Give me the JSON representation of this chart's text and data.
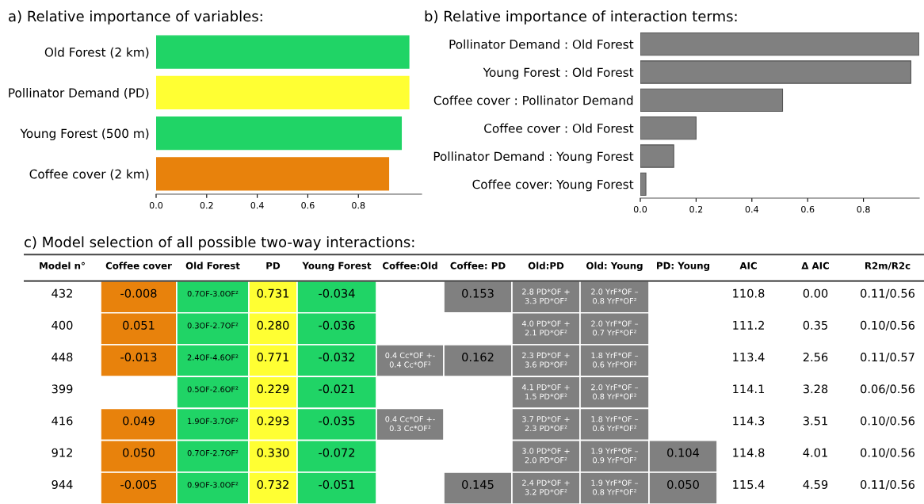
{
  "chart_data": [
    {
      "type": "bar",
      "orientation": "horizontal",
      "title": "a) Relative importance of variables:",
      "categories": [
        "Old Forest (2 km)",
        "Pollinator Demand (PD)",
        "Young Forest (500 m)",
        "Coffee cover (2 km)"
      ],
      "values": [
        1.0,
        1.0,
        0.97,
        0.92
      ],
      "colors": [
        "#20d466",
        "#ffff33",
        "#20d466",
        "#e8820c"
      ],
      "xlim": [
        0,
        1.05
      ],
      "xticks": [
        {
          "value": 0,
          "label": "0.0"
        },
        0.2,
        0.4,
        0.6,
        0.8
      ],
      "grid": false,
      "legend": false
    },
    {
      "type": "bar",
      "orientation": "horizontal",
      "title": "b) Relative importance of interaction terms:",
      "categories": [
        "Pollinator Demand : Old Forest",
        "Young Forest : Old Forest",
        "Coffee cover : Pollinator Demand",
        "Coffee cover : Old Forest",
        "Pollinator Demand : Young Forest",
        "Coffee cover: Young Forest"
      ],
      "values": [
        1.0,
        0.97,
        0.51,
        0.2,
        0.12,
        0.02
      ],
      "color": "#808080",
      "xlim": [
        0,
        1.0
      ],
      "xticks": [
        {
          "value": 0,
          "label": "0.0"
        },
        0.2,
        0.4,
        0.6,
        0.8
      ],
      "grid": false,
      "legend": false
    },
    {
      "type": "other",
      "title": "c) Model selection of all possible two-way interactions:",
      "categories": [
        "Model n°",
        "Coffee cover",
        "Old Forest",
        "PD",
        "Young Forest",
        "Coffee:Old",
        "Coffee: PD",
        "Old:PD",
        "Old: Young",
        "PD: Young",
        "AIC",
        "Δ AIC",
        "R2m/R2c"
      ],
      "colors": [
        null,
        "#e8820c",
        "#20d466",
        "#ffff33",
        "#20d466",
        "#808080",
        "#808080",
        "#808080",
        "#808080",
        "#808080",
        null,
        null,
        null
      ],
      "cell_labels": [
        [
          "432",
          "-0.008",
          "0.7OF-3.0OF²",
          "0.731",
          "-0.034",
          null,
          "0.153",
          "2.8 PD*OF +\n3.3 PD*OF²",
          "2.0 YrF*OF –\n0.8 YrF*OF²",
          null,
          "110.8",
          "0.00",
          "0.11/0.56"
        ],
        [
          "400",
          "0.051",
          "0.3OF-2.7OF²",
          "0.280",
          "-0.036",
          null,
          null,
          "4.0 PD*OF +\n2.1 PD*OF²",
          "2.0 YrF*OF –\n0.7 YrF*OF²",
          null,
          "111.2",
          "0.35",
          "0.10/0.56"
        ],
        [
          "448",
          "-0.013",
          "2.4OF-4.6OF²",
          "0.771",
          "-0.032",
          "0.4 Cc*OF +-\n0.4 Cc*OF²",
          "0.162",
          "2.3 PD*OF +\n3.6 PD*OF²",
          "1.8 YrF*OF –\n0.6 YrF*OF²",
          null,
          "113.4",
          "2.56",
          "0.11/0.57"
        ],
        [
          "399",
          null,
          "0.5OF-2.6OF²",
          "0.229",
          "-0.021",
          null,
          null,
          "4.1 PD*OF +\n1.5 PD*OF²",
          "2.0 YrF*OF –\n0.8 YrF*OF²",
          null,
          "114.1",
          "3.28",
          "0.06/0.56"
        ],
        [
          "416",
          "0.049",
          "1.9OF-3.7OF²",
          "0.293",
          "-0.035",
          "0.4 Cc*OF +-\n0.3 Cc*OF²",
          null,
          "3.7 PD*OF +\n2.3 PD*OF²",
          "1.8 YrF*OF –\n0.6 YrF*OF²",
          null,
          "114.3",
          "3.51",
          "0.10/0.56"
        ],
        [
          "912",
          "0.050",
          "0.7OF-2.7OF²",
          "0.330",
          "-0.072",
          null,
          null,
          "3.0 PD*OF +\n2.0 PD*OF²",
          "1.9 YrF*OF –\n0.9 YrF*OF²",
          "0.104",
          "114.8",
          "4.01",
          "0.10/0.56"
        ],
        [
          "944",
          "-0.005",
          "0.9OF-3.0OF²",
          "0.732",
          "-0.051",
          null,
          "0.145",
          "2.4 PD*OF +\n3.2 PD*OF²",
          "1.9 YrF*OF –\n0.8 YrF*OF²",
          "0.050",
          "115.4",
          "4.59",
          "0.11/0.56"
        ]
      ]
    }
  ]
}
